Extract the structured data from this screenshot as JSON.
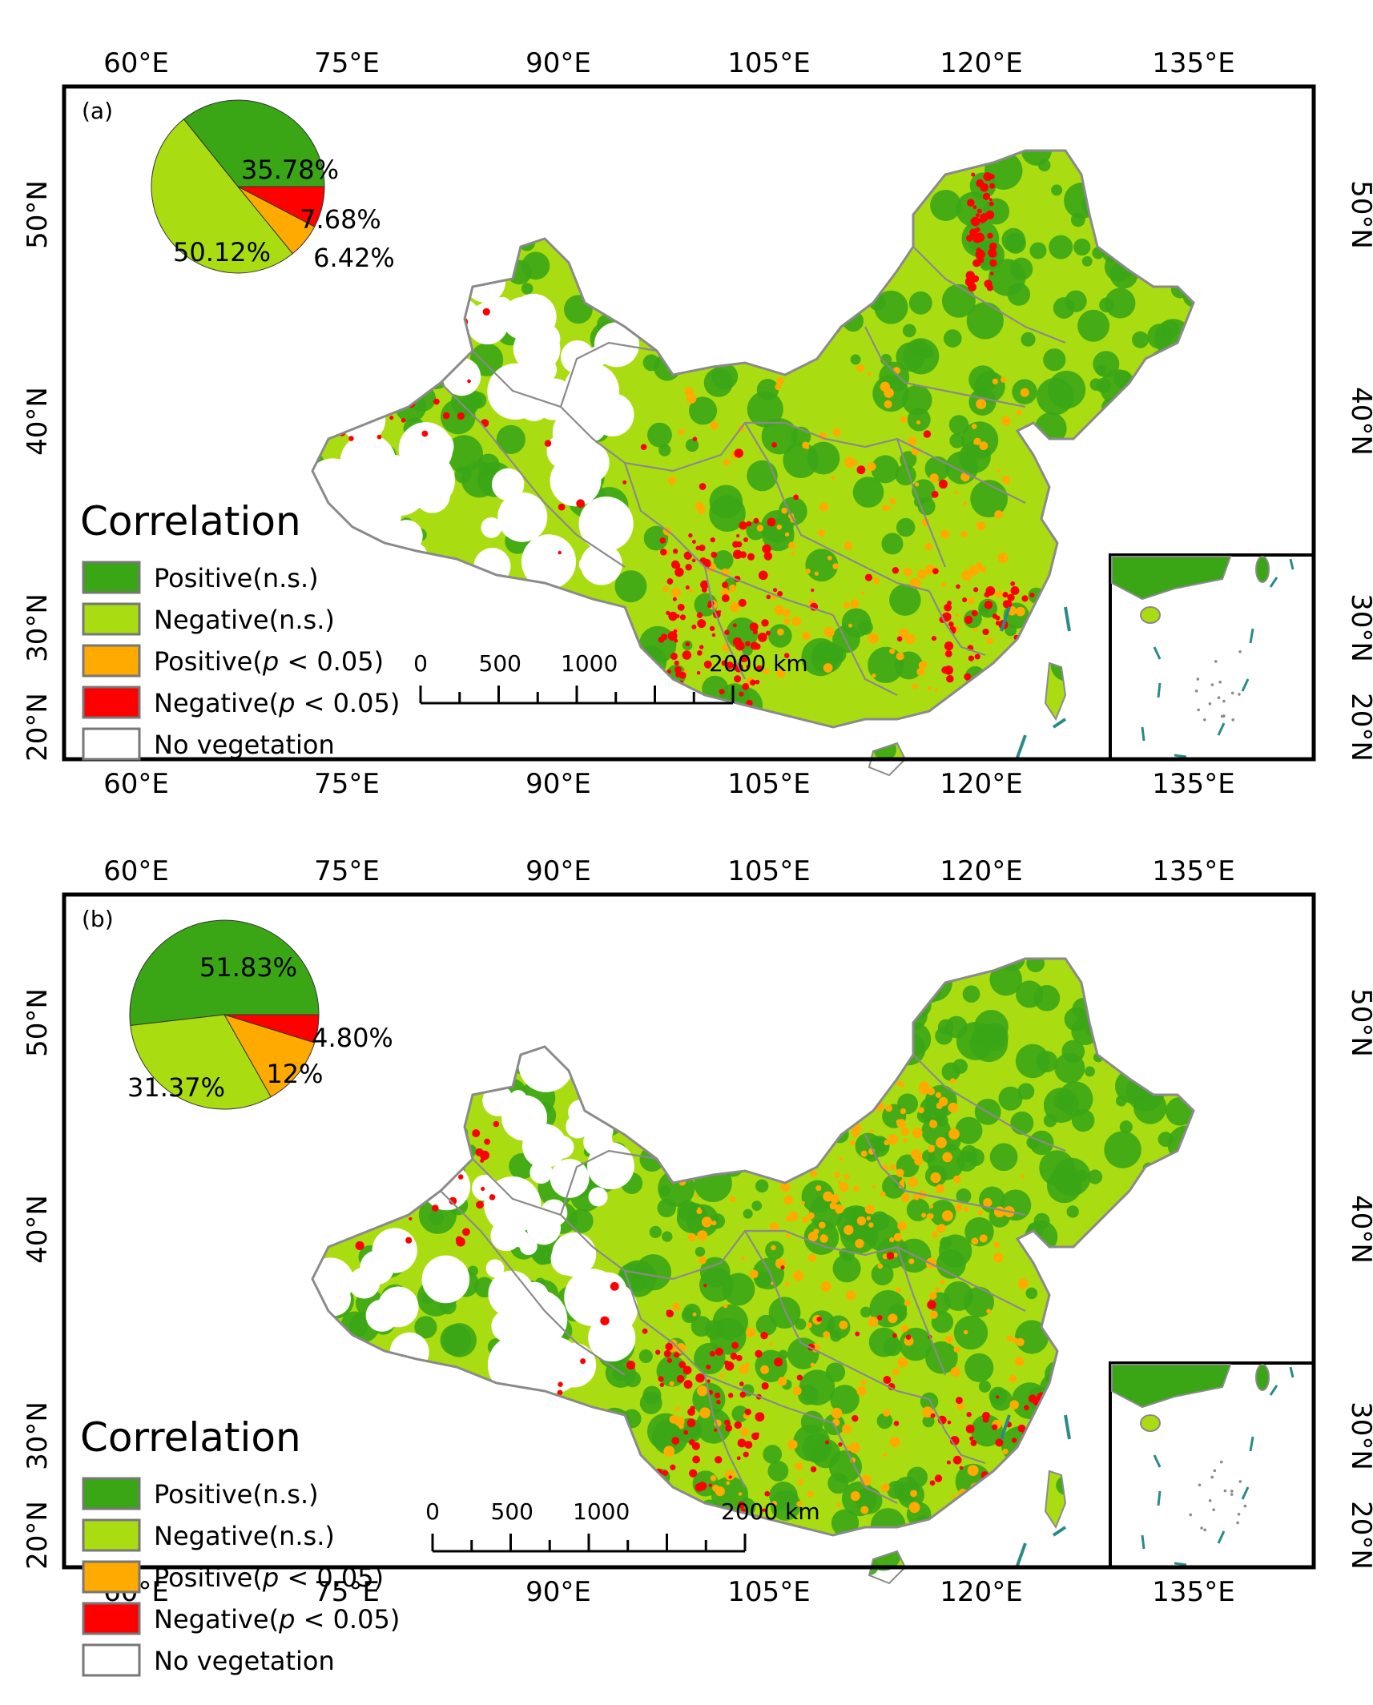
{
  "colors": {
    "positive_ns": "#3aa616",
    "negative_ns": "#aadd11",
    "positive_sig": "#ffaa00",
    "negative_sig": "#ff0000",
    "no_vegetation": "#ffffff",
    "boundary": "#8a8a8a",
    "nine_dash": "#2a8a8a"
  },
  "axes": {
    "lon_labels": [
      "60°E",
      "75°E",
      "90°E",
      "105°E",
      "120°E",
      "135°E"
    ],
    "lat_labels": [
      "50°N",
      "40°N",
      "30°N",
      "20°N"
    ]
  },
  "legend": {
    "title": "Correlation",
    "items": [
      {
        "label": "Positive(n.s.)",
        "italic_p": false,
        "color": "#3aa616"
      },
      {
        "label": "Negative(n.s.)",
        "italic_p": false,
        "color": "#aadd11"
      },
      {
        "label_pre": "Positive(",
        "label_p": "p",
        "label_post": " < 0.05)",
        "italic_p": true,
        "color": "#ffaa00"
      },
      {
        "label_pre": "Negative(",
        "label_p": "p",
        "label_post": " < 0.05)",
        "italic_p": true,
        "color": "#ff0000"
      },
      {
        "label": "No vegetation",
        "italic_p": false,
        "color": "#ffffff"
      }
    ]
  },
  "scale_bar": {
    "labels": [
      "0",
      "500",
      "1000",
      "2000 km"
    ]
  },
  "panels": [
    {
      "id": "a",
      "label": "(a)",
      "pie": [
        {
          "category": "Positive(n.s.)",
          "value": 35.78,
          "label": "35.78%"
        },
        {
          "category": "Negative(p < 0.05)",
          "value": 7.68,
          "label": "7.68%"
        },
        {
          "category": "Positive(p < 0.05)",
          "value": 6.42,
          "label": "6.42%"
        },
        {
          "category": "Negative(n.s.)",
          "value": 50.12,
          "label": "50.12%"
        }
      ]
    },
    {
      "id": "b",
      "label": "(b)",
      "pie": [
        {
          "category": "Positive(n.s.)",
          "value": 51.83,
          "label": "51.83%"
        },
        {
          "category": "Negative(p < 0.05)",
          "value": 4.8,
          "label": "4.80%"
        },
        {
          "category": "Positive(p < 0.05)",
          "value": 12,
          "label": "12%"
        },
        {
          "category": "Negative(n.s.)",
          "value": 31.37,
          "label": "31.37%"
        }
      ]
    }
  ]
}
